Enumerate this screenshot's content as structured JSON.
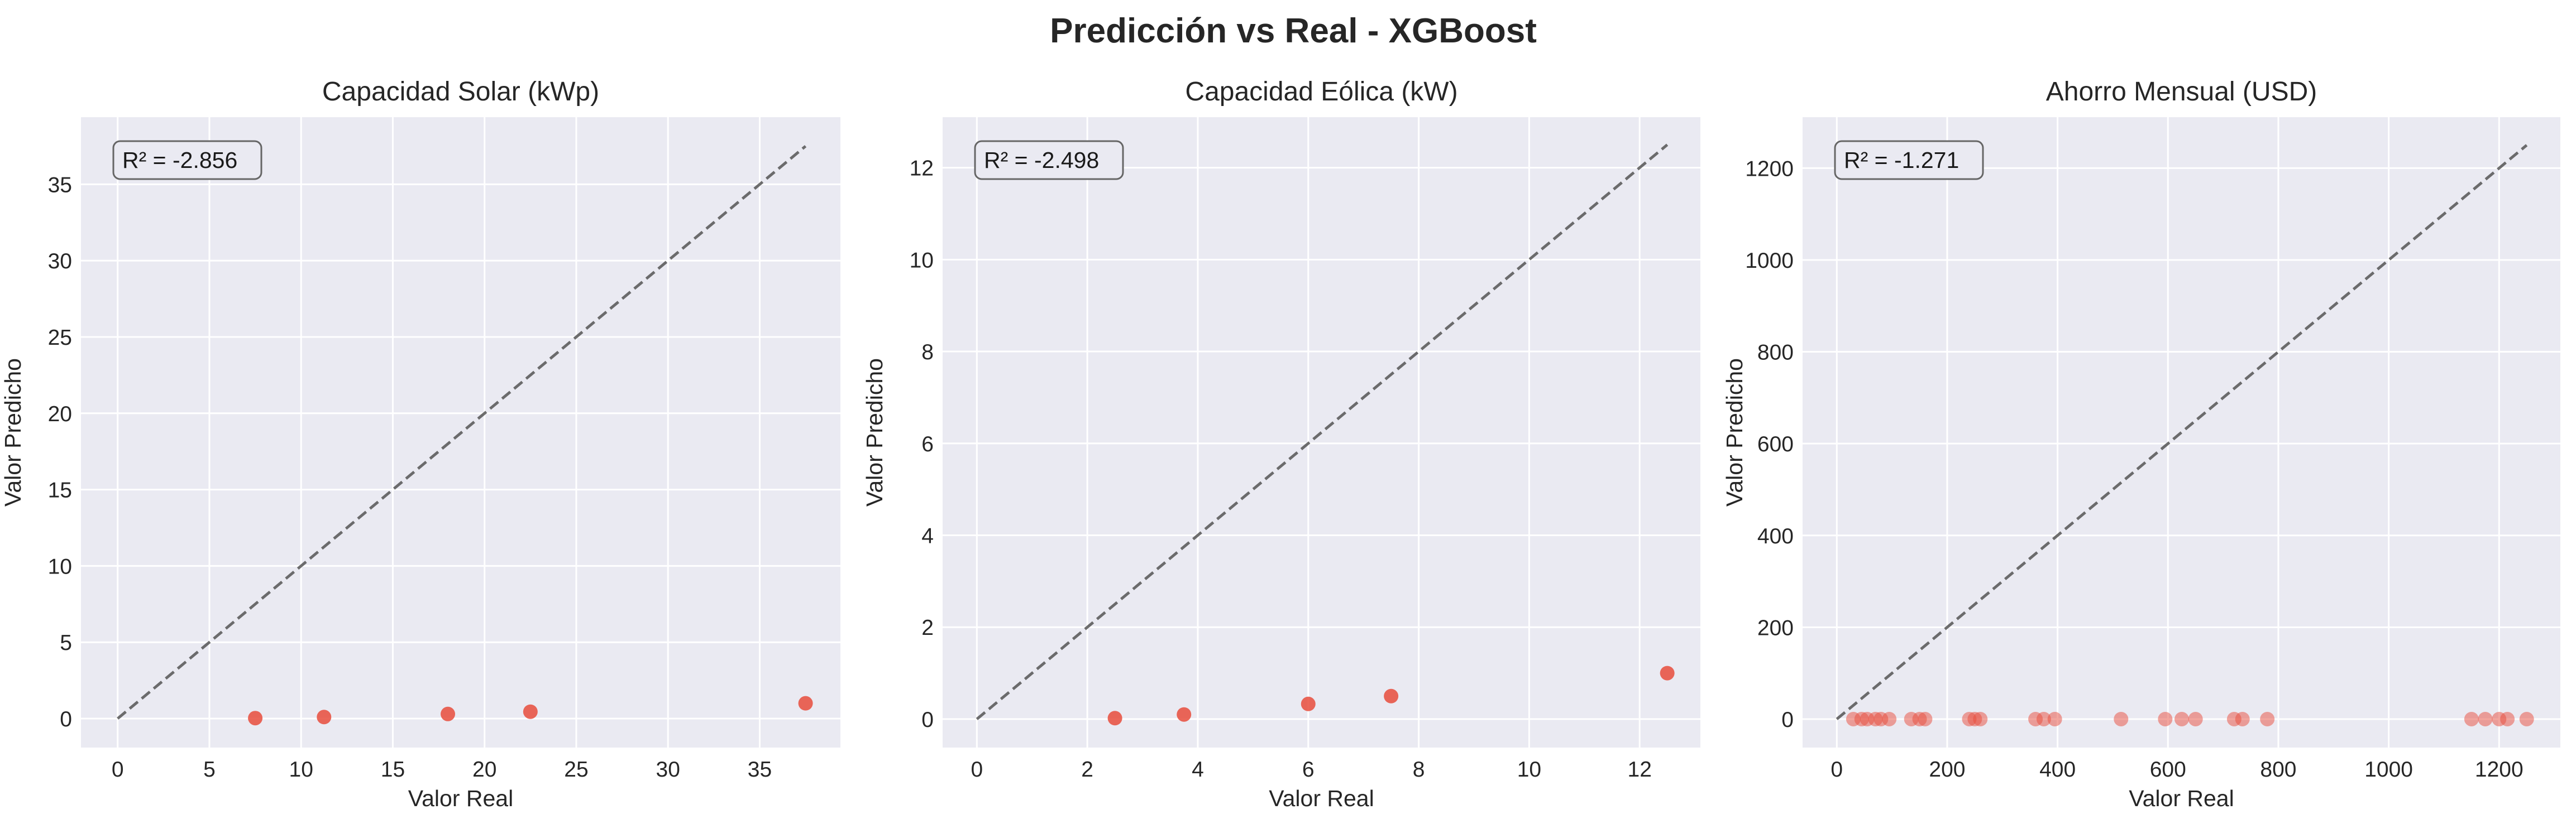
{
  "figure": {
    "title": "Predicción vs Real - XGBoost"
  },
  "chart_data": [
    {
      "type": "scatter",
      "title": "Capacidad Solar (kWp)",
      "xlabel": "Valor Real",
      "ylabel": "Valor Predicho",
      "xlim": [
        -2,
        39.4
      ],
      "ylim": [
        -1.9,
        39.4
      ],
      "xticks": [
        0,
        5,
        10,
        15,
        20,
        25,
        30,
        35
      ],
      "yticks": [
        0,
        5,
        10,
        15,
        20,
        25,
        30,
        35
      ],
      "annotation": "R² = -2.856",
      "diagonal": [
        0,
        37.5
      ],
      "grid": true,
      "point_color": "#e74c3c",
      "point_alpha": 0.85,
      "series": [
        {
          "x": [
            7.5,
            11.25,
            18,
            22.5,
            37.5
          ],
          "y": [
            0.03,
            0.1,
            0.3,
            0.45,
            1.0
          ]
        }
      ]
    },
    {
      "type": "scatter",
      "title": "Capacidad Eólica (kW)",
      "xlabel": "Valor Real",
      "ylabel": "Valor Predicho",
      "xlim": [
        -0.62,
        13.1
      ],
      "ylim": [
        -0.62,
        13.1
      ],
      "xticks": [
        0,
        2,
        4,
        6,
        8,
        10,
        12
      ],
      "yticks": [
        0,
        2,
        4,
        6,
        8,
        10,
        12
      ],
      "annotation": "R² = -2.498",
      "diagonal": [
        0,
        12.5
      ],
      "grid": true,
      "point_color": "#e74c3c",
      "point_alpha": 0.85,
      "series": [
        {
          "x": [
            2.5,
            3.75,
            6,
            7.5,
            12.5
          ],
          "y": [
            0.02,
            0.1,
            0.33,
            0.5,
            1.0
          ]
        }
      ]
    },
    {
      "type": "scatter",
      "title": "Ahorro Mensual (USD)",
      "xlabel": "Valor Real",
      "ylabel": "Valor Predicho",
      "xlim": [
        -62,
        1311
      ],
      "ylim": [
        -62,
        1311
      ],
      "xticks": [
        0,
        200,
        400,
        600,
        800,
        1000,
        1200
      ],
      "yticks": [
        0,
        200,
        400,
        600,
        800,
        1000,
        1200
      ],
      "annotation": "R² = -1.271",
      "diagonal": [
        0,
        1250
      ],
      "grid": true,
      "point_color": "#e74c3c",
      "point_alpha": 0.5,
      "series": [
        {
          "x": [
            30,
            45,
            55,
            70,
            80,
            95,
            135,
            150,
            160,
            240,
            250,
            260,
            360,
            375,
            395,
            515,
            595,
            625,
            650,
            720,
            735,
            780,
            1150,
            1175,
            1200,
            1215,
            1250
          ],
          "y": [
            0,
            0,
            0,
            0,
            0,
            0,
            0,
            0,
            0,
            0,
            0,
            0,
            0,
            0,
            0,
            0,
            0,
            0,
            0,
            0,
            0,
            0,
            0,
            0,
            0,
            0,
            0
          ]
        }
      ]
    }
  ]
}
